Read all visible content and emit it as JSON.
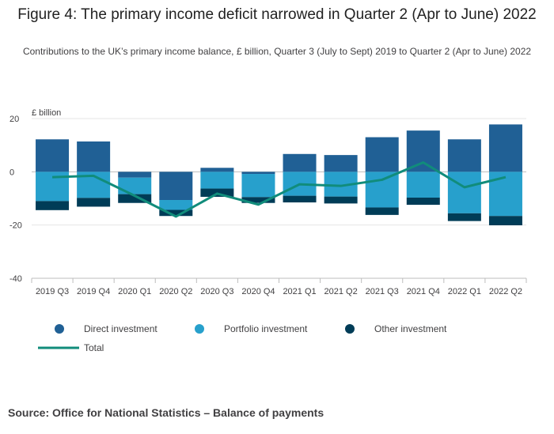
{
  "chart_data": {
    "type": "bar",
    "title": "Figure 4: The primary income deficit narrowed in Quarter 2 (Apr to June) 2022",
    "subtitle": "Contributions to the UK’s primary income balance, £ billion, Quarter 3 (July to Sept) 2019 to Quarter 2 (Apr to June) 2022",
    "ylabel": "£ billion",
    "ylim": [
      -40,
      20
    ],
    "yticks": [
      "20",
      "0",
      "-20",
      "-40"
    ],
    "categories": [
      "2019 Q3",
      "2019 Q4",
      "2020 Q1",
      "2020 Q2",
      "2020 Q3",
      "2020 Q4",
      "2021 Q1",
      "2021 Q2",
      "2021 Q3",
      "2021 Q4",
      "2022 Q1",
      "2022 Q2"
    ],
    "series": [
      {
        "name": "Direct investment",
        "type": "bar",
        "color": "#206095",
        "values": [
          12.2,
          11.4,
          -2.2,
          -10.6,
          1.5,
          -0.8,
          6.7,
          6.3,
          13.0,
          15.5,
          12.2,
          17.8
        ]
      },
      {
        "name": "Portfolio investment",
        "type": "bar",
        "color": "#27a0cc",
        "values": [
          -11.0,
          -9.8,
          -6.2,
          -3.7,
          -6.3,
          -8.7,
          -9.0,
          -9.3,
          -13.4,
          -9.7,
          -15.6,
          -16.6
        ]
      },
      {
        "name": "Other investment",
        "type": "bar",
        "color": "#003c57",
        "values": [
          -3.4,
          -3.3,
          -3.3,
          -2.3,
          -3.1,
          -2.2,
          -2.5,
          -2.6,
          -2.8,
          -2.7,
          -2.9,
          -3.5
        ]
      },
      {
        "name": "Total",
        "type": "line",
        "color": "#118c7b",
        "values": [
          -2.0,
          -1.5,
          -9.0,
          -16.8,
          -8.2,
          -12.3,
          -4.7,
          -5.3,
          -3.0,
          3.5,
          -5.8,
          -2.0
        ]
      }
    ],
    "legend": "bottom"
  },
  "source": "Source: Office for National Statistics – Balance of payments"
}
